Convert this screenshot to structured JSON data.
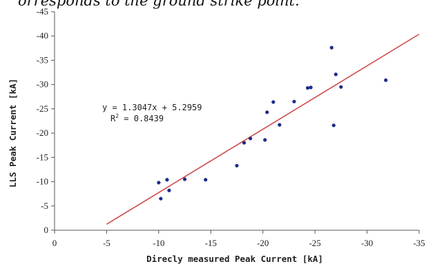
{
  "caption": "orresponds to the ground strike point.",
  "chart_data": {
    "type": "scatter",
    "title": "",
    "xlabel": "Direcly measured Peak Current [kA]",
    "ylabel": "LLS Peak Current [kA]",
    "xlim": [
      0,
      -35
    ],
    "ylim": [
      0,
      -45
    ],
    "x_ticks": [
      "0",
      "-5",
      "-10",
      "-15",
      "-20",
      "-25",
      "-30",
      "-35"
    ],
    "y_ticks": [
      "0",
      "-5",
      "-10",
      "-15",
      "-20",
      "-25",
      "-30",
      "-35",
      "-40",
      "-45"
    ],
    "grid": false,
    "points": {
      "x": [
        -10.0,
        -10.2,
        -10.8,
        -11.0,
        -12.5,
        -14.5,
        -17.5,
        -18.2,
        -18.8,
        -20.2,
        -20.4,
        -21.0,
        -21.6,
        -23.0,
        -24.3,
        -24.6,
        -26.6,
        -26.8,
        -27.0,
        -27.5,
        -31.8
      ],
      "y": [
        -9.8,
        -6.5,
        -10.4,
        -8.2,
        -10.5,
        -10.4,
        -13.3,
        -18.0,
        -18.9,
        -18.6,
        -24.3,
        -26.4,
        -21.7,
        -26.5,
        -29.3,
        -29.4,
        -37.6,
        -21.6,
        -32.1,
        -29.5,
        -30.9
      ]
    },
    "trendline": {
      "slope": 1.3047,
      "intercept": 5.2959,
      "x_range": [
        -5,
        -35
      ],
      "equation_label": "y = 1.3047x + 5.2959",
      "r2_prefix": "R",
      "r2_sup": "2",
      "r2_value": " = 0.8439"
    },
    "colors": {
      "points": "#1f2a8a",
      "trendline": "#d04a4a",
      "axis": "#555555"
    }
  }
}
